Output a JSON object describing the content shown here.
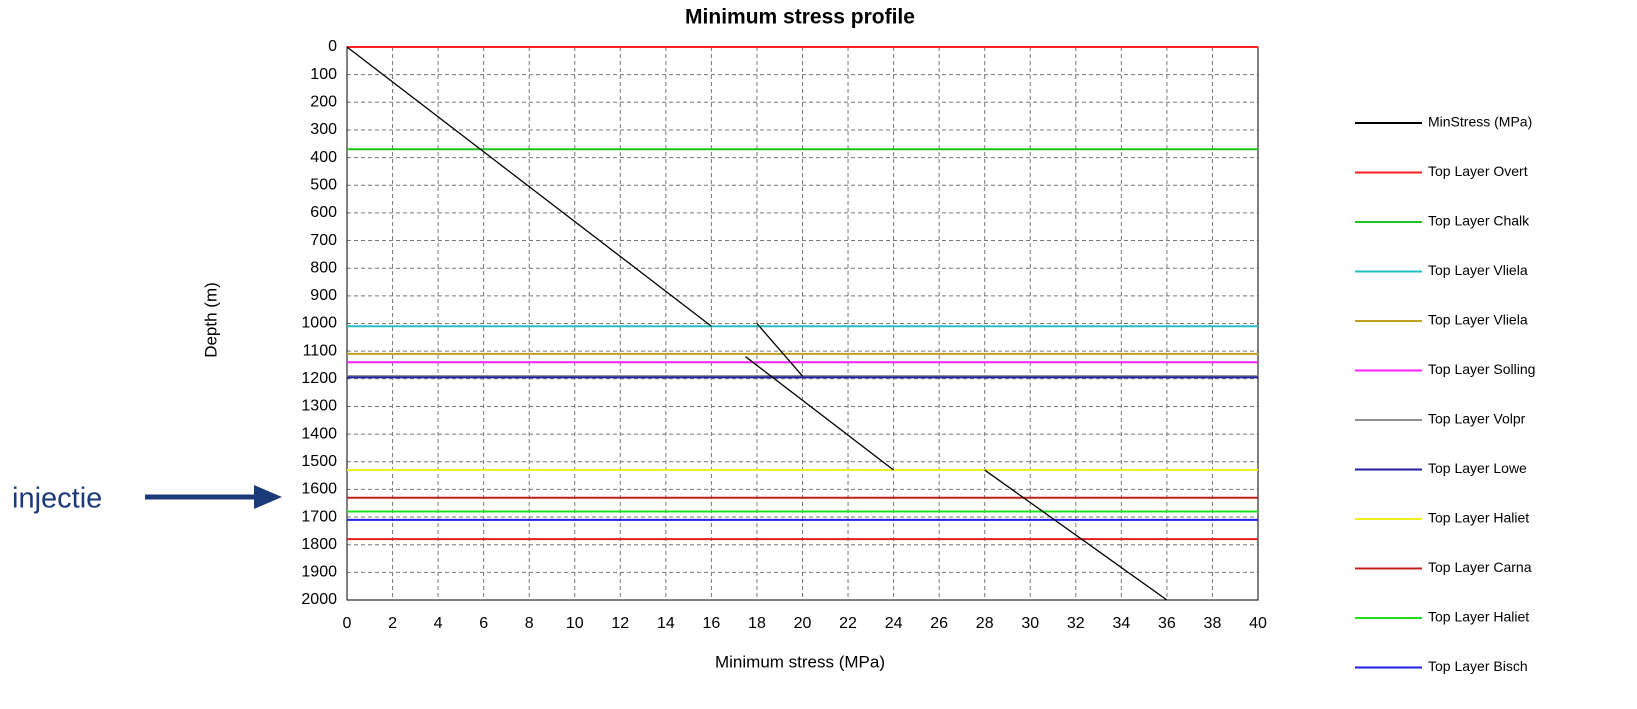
{
  "chart_data": {
    "type": "line",
    "title": "Minimum stress profile",
    "x_label": "Minimum stress (MPa)",
    "y_label": "Depth (m)",
    "xlim": [
      0,
      40
    ],
    "xticks": [
      0,
      2,
      4,
      6,
      8,
      10,
      12,
      14,
      16,
      18,
      20,
      22,
      24,
      26,
      28,
      30,
      32,
      34,
      36,
      38,
      40
    ],
    "ylim": [
      0,
      2000
    ],
    "y_inverted": true,
    "yticks": [
      0,
      100,
      200,
      300,
      400,
      500,
      600,
      700,
      800,
      900,
      1000,
      1100,
      1200,
      1300,
      1400,
      1500,
      1600,
      1700,
      1800,
      1900,
      2000
    ],
    "grid": true,
    "series": [
      {
        "name": "MinStress (MPa)",
        "color": "#000000",
        "x": [
          0,
          16,
          null,
          18,
          20,
          null,
          17.5,
          24,
          null,
          28,
          36
        ],
        "values": [
          0,
          1010,
          null,
          1000,
          1190,
          null,
          1120,
          1530,
          null,
          1530,
          2000
        ]
      }
    ],
    "layers": [
      {
        "name": "Top Layer Overt",
        "color": "#ff2020",
        "depth": 0
      },
      {
        "name": "Top Layer Chalk",
        "color": "#20c020",
        "depth": 370
      },
      {
        "name": "Top Layer Vliela",
        "color": "#20c0c0",
        "depth": 1010
      },
      {
        "name": "Top Layer Vliela",
        "color": "#c0a020",
        "depth": 1110
      },
      {
        "name": "Top Layer Solling",
        "color": "#ff20ff",
        "depth": 1140
      },
      {
        "name": "Top Layer Volpr",
        "color": "#909090",
        "depth": 1190
      },
      {
        "name": "Top Layer Lowe",
        "color": "#2020a0",
        "depth": 1195
      },
      {
        "name": "Top Layer Haliet",
        "color": "#f0f020",
        "depth": 1530
      },
      {
        "name": "Top Layer Carna",
        "color": "#c02020",
        "depth": 1630
      },
      {
        "name": "Top Layer Haliet",
        "color": "#20e020",
        "depth": 1680
      },
      {
        "name": "Top Layer Bisch",
        "color": "#2020e0",
        "depth": 1710
      },
      {
        "color": "#e02020",
        "depth": 1780
      }
    ],
    "annotation": "injectie"
  }
}
